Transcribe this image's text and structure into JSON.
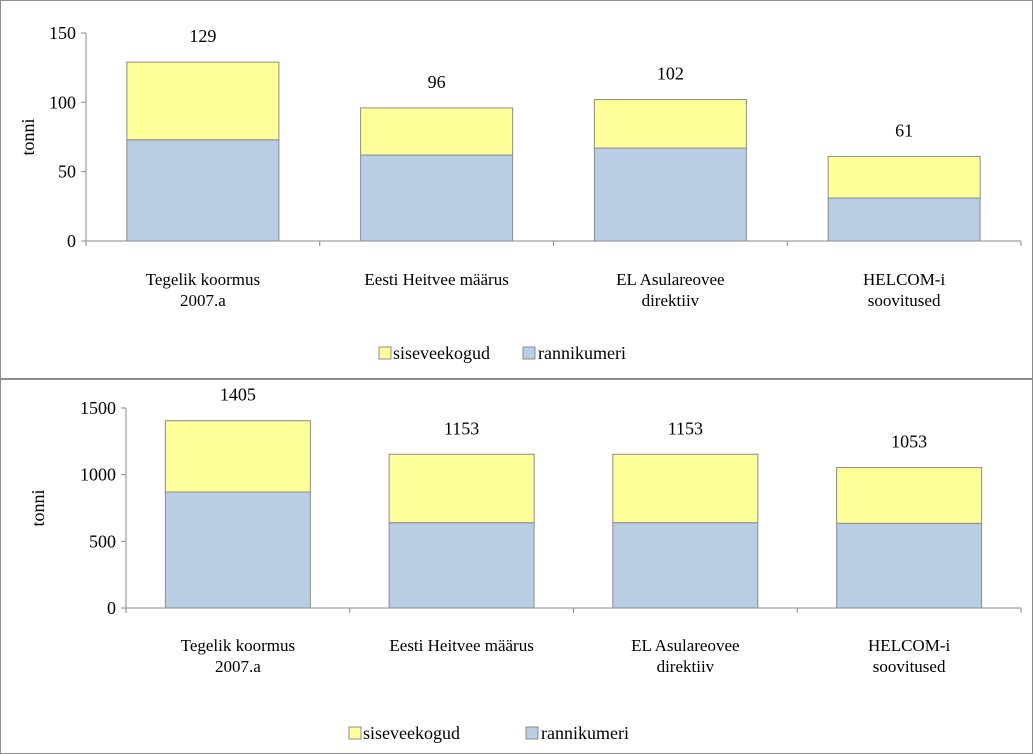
{
  "chart_data": [
    {
      "type": "bar",
      "stacked": true,
      "y_label": "tonni",
      "categories": [
        "Tegelik koormus\n2007.a",
        "Eesti Heitvee määrus",
        "EL Asulareovee\ndirektiiv",
        "HELCOM-i\nsoovitused"
      ],
      "series": [
        {
          "name": "rannikumeri",
          "color": "#b9cde5",
          "values": [
            73,
            62,
            67,
            31
          ]
        },
        {
          "name": "siseveekogud",
          "color": "#ffff99",
          "values": [
            56,
            34,
            35,
            30
          ]
        }
      ],
      "totals": [
        129,
        96,
        102,
        61
      ],
      "ylim": [
        0,
        150
      ],
      "yticks": [
        0,
        50,
        100,
        150
      ]
    },
    {
      "type": "bar",
      "stacked": true,
      "y_label": "tonni",
      "categories": [
        "Tegelik koormus\n2007.a",
        "Eesti Heitvee määrus",
        "EL Asulareovee\ndirektiiv",
        "HELCOM-i\nsoovitused"
      ],
      "series": [
        {
          "name": "rannikumeri",
          "color": "#b9cde5",
          "values": [
            870,
            640,
            640,
            635
          ]
        },
        {
          "name": "siseveekogud",
          "color": "#ffff99",
          "values": [
            535,
            513,
            513,
            418
          ]
        }
      ],
      "totals": [
        1405,
        1153,
        1153,
        1053
      ],
      "ylim": [
        0,
        1500
      ],
      "yticks": [
        0,
        500,
        1000,
        1500
      ]
    }
  ]
}
